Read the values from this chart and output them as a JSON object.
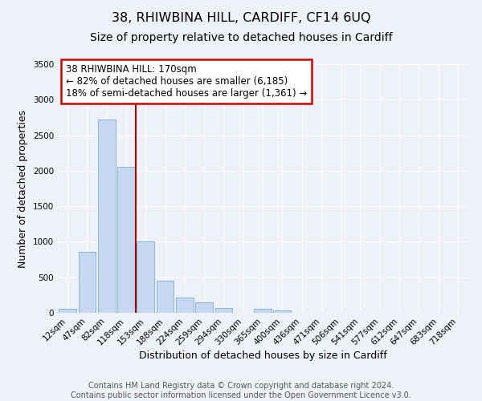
{
  "title": "38, RHIWBINA HILL, CARDIFF, CF14 6UQ",
  "subtitle": "Size of property relative to detached houses in Cardiff",
  "xlabel": "Distribution of detached houses by size in Cardiff",
  "ylabel": "Number of detached properties",
  "bar_labels": [
    "12sqm",
    "47sqm",
    "82sqm",
    "118sqm",
    "153sqm",
    "188sqm",
    "224sqm",
    "259sqm",
    "294sqm",
    "330sqm",
    "365sqm",
    "400sqm",
    "436sqm",
    "471sqm",
    "506sqm",
    "541sqm",
    "577sqm",
    "612sqm",
    "647sqm",
    "683sqm",
    "718sqm"
  ],
  "bar_values": [
    55,
    860,
    2720,
    2060,
    1010,
    455,
    215,
    145,
    70,
    0,
    55,
    30,
    0,
    0,
    0,
    0,
    0,
    0,
    0,
    0,
    0
  ],
  "bar_color": "#c5d8f0",
  "bar_edgecolor": "#7aadd4",
  "vline_x": 3.5,
  "vline_color": "#aa0000",
  "annotation_text": "38 RHIWBINA HILL: 170sqm\n← 82% of detached houses are smaller (6,185)\n18% of semi-detached houses are larger (1,361) →",
  "annotation_box_color": "#ffffff",
  "annotation_box_edgecolor": "#cc0000",
  "ylim": [
    0,
    3500
  ],
  "yticks": [
    0,
    500,
    1000,
    1500,
    2000,
    2500,
    3000,
    3500
  ],
  "footer_line1": "Contains HM Land Registry data © Crown copyright and database right 2024.",
  "footer_line2": "Contains public sector information licensed under the Open Government Licence v3.0.",
  "title_fontsize": 11.5,
  "subtitle_fontsize": 10,
  "axis_label_fontsize": 9,
  "tick_fontsize": 7.5,
  "footer_fontsize": 7,
  "annotation_fontsize": 8.5,
  "bg_color": "#eef2f8",
  "grid_color": "#ffffff"
}
